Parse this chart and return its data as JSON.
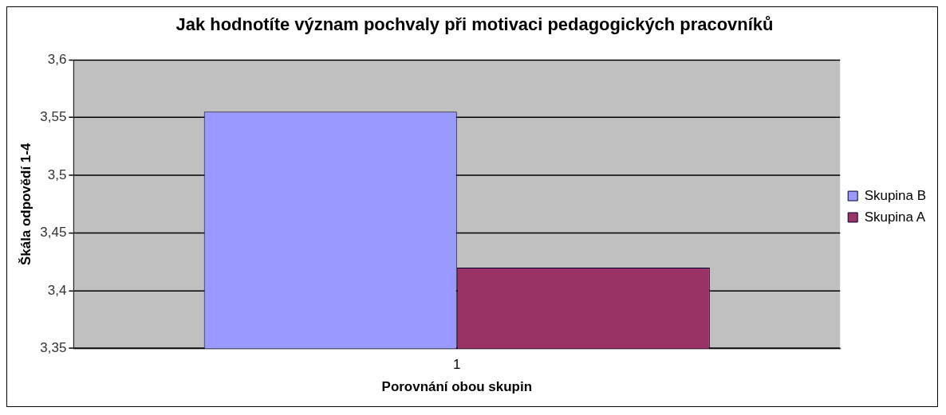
{
  "chart_data": {
    "type": "bar",
    "title": "Jak hodnotíte význam pochvaly při motivaci pedagogických pracovníků",
    "xlabel": "Porovnání obou skupin",
    "ylabel": "Škála odpovědí 1-4",
    "categories": [
      "1"
    ],
    "series": [
      {
        "name": "Skupina B",
        "color": "#9999ff",
        "values": [
          3.555
        ]
      },
      {
        "name": "Skupina A",
        "color": "#993366",
        "values": [
          3.42
        ]
      }
    ],
    "ylim": [
      3.35,
      3.6
    ],
    "yticks": [
      {
        "value": 3.35,
        "label": "3,35"
      },
      {
        "value": 3.4,
        "label": "3,4"
      },
      {
        "value": 3.45,
        "label": "3,45"
      },
      {
        "value": 3.5,
        "label": "3,5"
      },
      {
        "value": 3.55,
        "label": "3,55"
      },
      {
        "value": 3.6,
        "label": "3,6"
      }
    ],
    "grid": "y",
    "legend": "right"
  }
}
